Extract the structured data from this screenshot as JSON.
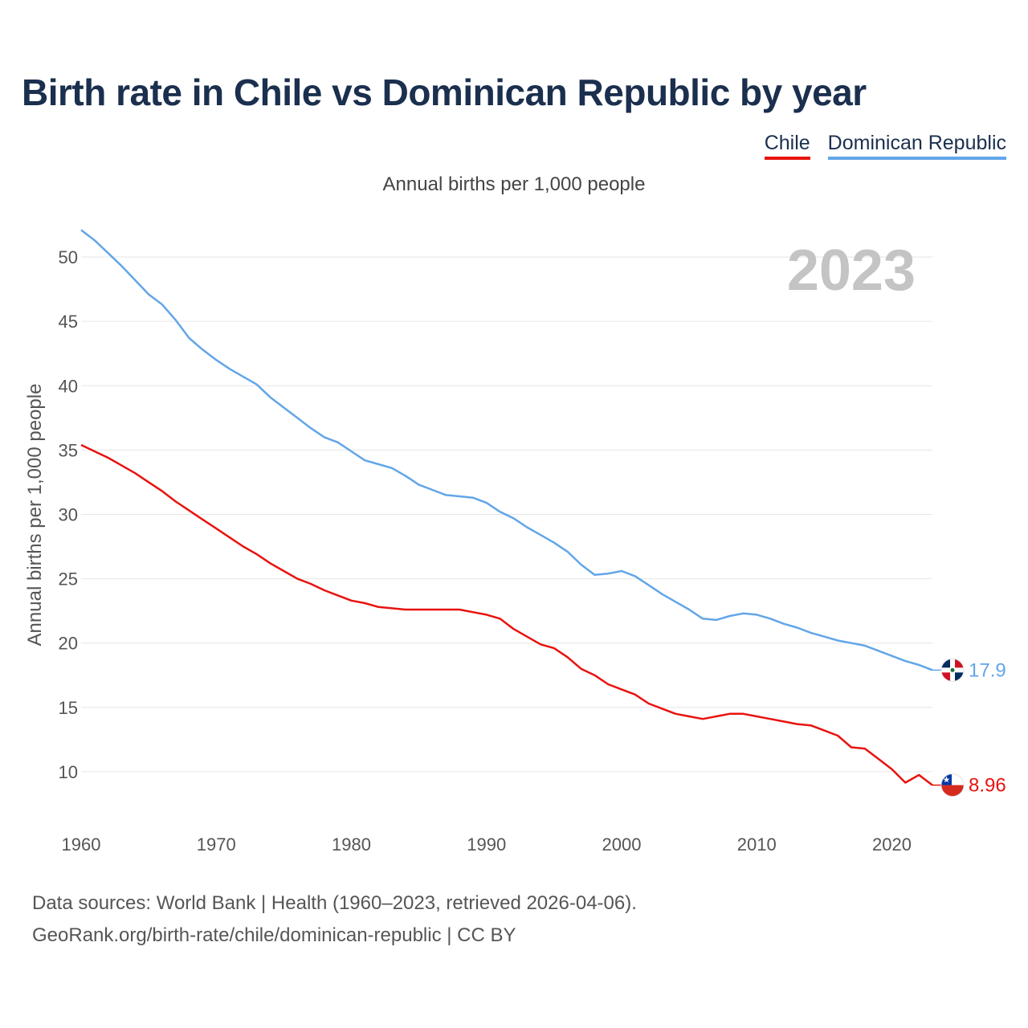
{
  "title": "Birth rate in Chile vs Dominican Republic by year",
  "subtitle": "Annual births per 1,000 people",
  "year_label": "2023",
  "footer": {
    "line1": "Data sources: World Bank | Health (1960–2023, retrieved 2026-04-06).",
    "line2": "GeoRank.org/birth-rate/chile/dominican-republic | CC BY"
  },
  "colors": {
    "chile": "#e8130f",
    "dominican_republic": "#62a6e8",
    "title": "#1b2f4e",
    "grid": "#e6e6e6"
  },
  "chart_data": {
    "type": "line",
    "title": "Birth rate in Chile vs Dominican Republic by year",
    "ylabel": "Annual births per 1,000 people",
    "xlabel": "",
    "xlim": [
      1960,
      2023
    ],
    "ylim": [
      5.5,
      52.5
    ],
    "x_ticks": [
      1960,
      1970,
      1980,
      1990,
      2000,
      2010,
      2020
    ],
    "y_ticks": [
      10,
      15,
      20,
      25,
      30,
      35,
      40,
      45,
      50
    ],
    "x": [
      1960,
      1961,
      1962,
      1963,
      1964,
      1965,
      1966,
      1967,
      1968,
      1969,
      1970,
      1971,
      1972,
      1973,
      1974,
      1975,
      1976,
      1977,
      1978,
      1979,
      1980,
      1981,
      1982,
      1983,
      1984,
      1985,
      1986,
      1987,
      1988,
      1989,
      1990,
      1991,
      1992,
      1993,
      1994,
      1995,
      1996,
      1997,
      1998,
      1999,
      2000,
      2001,
      2002,
      2003,
      2004,
      2005,
      2006,
      2007,
      2008,
      2009,
      2010,
      2011,
      2012,
      2013,
      2014,
      2015,
      2016,
      2017,
      2018,
      2019,
      2020,
      2021,
      2022,
      2023
    ],
    "series": [
      {
        "name": "Chile",
        "color": "#e8130f",
        "end_label": "8.96",
        "flag": "chile-flag-icon",
        "values": [
          35.4,
          34.9,
          34.4,
          33.8,
          33.2,
          32.5,
          31.8,
          31.0,
          30.3,
          29.6,
          28.9,
          28.2,
          27.5,
          26.9,
          26.2,
          25.6,
          25.0,
          24.6,
          24.1,
          23.7,
          23.3,
          23.1,
          22.8,
          22.7,
          22.6,
          22.6,
          22.6,
          22.6,
          22.6,
          22.4,
          22.2,
          21.9,
          21.1,
          20.5,
          19.9,
          19.6,
          18.9,
          18.0,
          17.5,
          16.8,
          16.4,
          16.0,
          15.3,
          14.9,
          14.5,
          14.3,
          14.1,
          14.3,
          14.5,
          14.5,
          14.3,
          14.1,
          13.9,
          13.7,
          13.6,
          13.2,
          12.8,
          11.9,
          11.8,
          11.0,
          10.2,
          9.15,
          9.75,
          8.96
        ]
      },
      {
        "name": "Dominican Republic",
        "color": "#62a6e8",
        "end_label": "17.9",
        "flag": "dominican-republic-flag-icon",
        "values": [
          52.1,
          51.3,
          50.3,
          49.3,
          48.2,
          47.1,
          46.3,
          45.1,
          43.7,
          42.8,
          42.0,
          41.3,
          40.7,
          40.1,
          39.1,
          38.3,
          37.5,
          36.7,
          36.0,
          35.6,
          34.9,
          34.2,
          33.9,
          33.6,
          33.0,
          32.3,
          31.9,
          31.5,
          31.4,
          31.3,
          30.9,
          30.2,
          29.7,
          29.0,
          28.4,
          27.8,
          27.1,
          26.1,
          25.3,
          25.4,
          25.6,
          25.2,
          24.5,
          23.8,
          23.2,
          22.6,
          21.9,
          21.8,
          22.1,
          22.3,
          22.2,
          21.9,
          21.5,
          21.2,
          20.8,
          20.5,
          20.2,
          20.0,
          19.8,
          19.4,
          19.0,
          18.6,
          18.3,
          17.9
        ]
      }
    ]
  }
}
